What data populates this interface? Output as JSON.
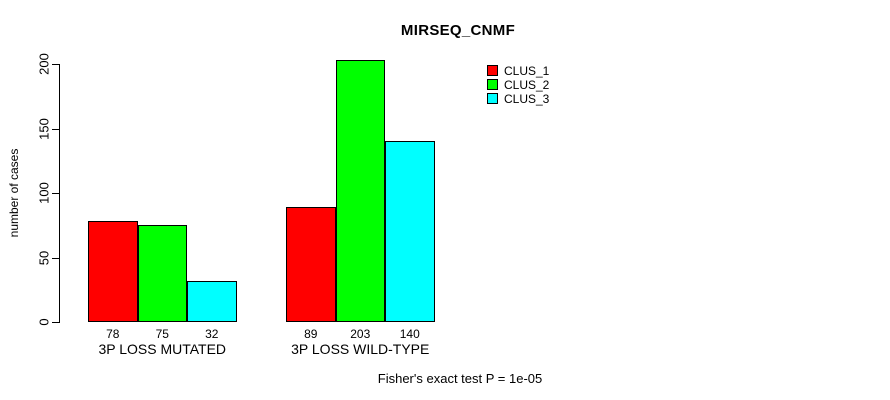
{
  "page": {
    "background": "#ffffff",
    "text_color": "#000000"
  },
  "chart_data": {
    "type": "bar",
    "title": "MIRSEQ_CNMF",
    "ylabel": "number of cases",
    "xlabel": "",
    "categories": [
      "3P LOSS MUTATED",
      "3P LOSS WILD-TYPE"
    ],
    "series": [
      {
        "name": "CLUS_1",
        "color": "#FF0000",
        "values": [
          78,
          89
        ]
      },
      {
        "name": "CLUS_2",
        "color": "#00FF00",
        "values": [
          75,
          203
        ]
      },
      {
        "name": "CLUS_3",
        "color": "#00FFFF",
        "values": [
          32,
          140
        ]
      }
    ],
    "yticks": [
      0,
      50,
      100,
      150,
      200
    ],
    "ylim": [
      0,
      200
    ],
    "grid": false,
    "legend_position": "top-right",
    "bar_border_color": "#000000",
    "footer": "Fisher's exact test P = 1e-05"
  }
}
